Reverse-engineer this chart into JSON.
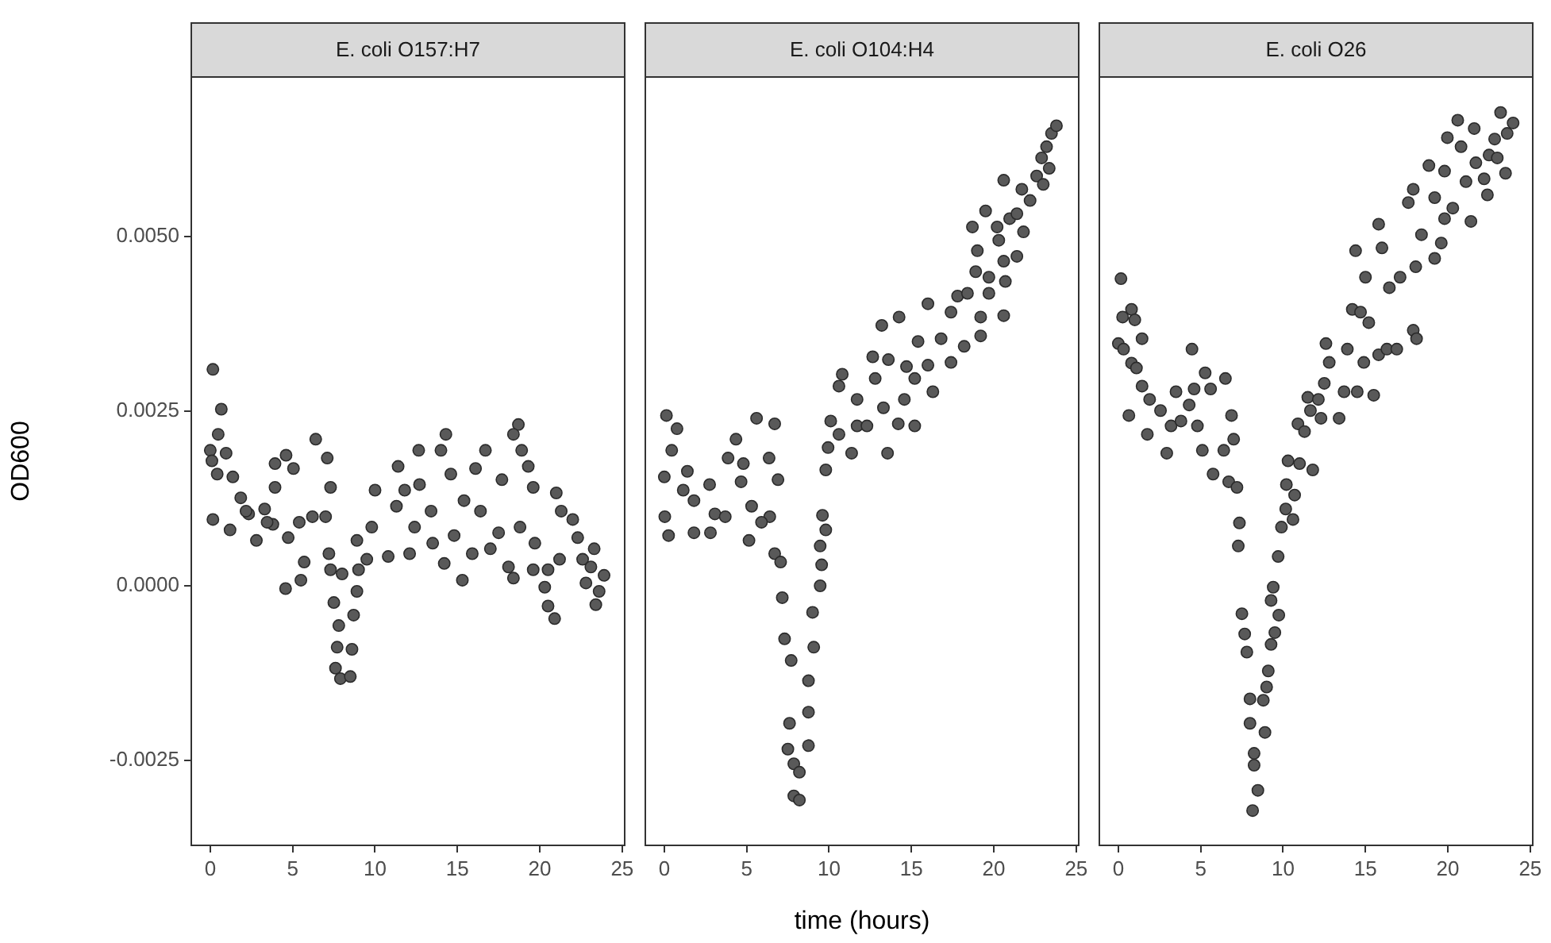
{
  "chart_data": [
    {
      "type": "scatter",
      "title": "E. coli O157:H7",
      "ylabel": "OD600",
      "color": "#595959",
      "marker": "circle",
      "xlim": [
        -1.2,
        25.2
      ],
      "xticks": [
        0,
        5,
        10,
        15,
        20,
        25
      ],
      "ylim": [
        -0.00373,
        0.0073
      ],
      "yticks": [
        {
          "value": -0.0025,
          "label": "-0.0025"
        },
        {
          "value": 0,
          "label": "0.0000"
        },
        {
          "value": 0.0025,
          "label": "0.0025"
        },
        {
          "value": 0.005,
          "label": "0.0050"
        }
      ],
      "x": [
        0.16,
        0.16,
        0,
        0.1,
        0.67,
        0.48,
        0.96,
        0.42,
        1.37,
        1.2,
        1.85,
        2.33,
        2.8,
        3.3,
        3.8,
        3.93,
        4.6,
        3.93,
        4.57,
        5.05,
        4.73,
        5.5,
        5.7,
        5.4,
        6.2,
        6.4,
        7.1,
        7.3,
        7.0,
        7.2,
        7.3,
        8.0,
        7.5,
        7.8,
        7.7,
        7.6,
        7.9,
        8.5,
        8.6,
        8.7,
        8.9,
        9.0,
        8.9,
        9.5,
        10.0,
        9.8,
        10.8,
        11.4,
        11.3,
        12.1,
        11.8,
        12.4,
        12.65,
        12.7,
        13.4,
        13.5,
        14.2,
        14.3,
        14.0,
        14.6,
        14.8,
        15.3,
        15.4,
        15.9,
        16.1,
        16.7,
        16.4,
        17.0,
        17.5,
        17.7,
        18.1,
        18.4,
        18.7,
        18.4,
        18.9,
        19.3,
        18.8,
        19.6,
        19.7,
        19.6,
        20.3,
        20.5,
        20.9,
        20.5,
        21.0,
        21.3,
        21.2,
        22.0,
        22.3,
        22.8,
        22.6,
        23.1,
        23.4,
        23.6,
        23.9,
        23.3,
        2.17,
        3.45
      ],
      "values": [
        0.0031,
        0.00095,
        0.00194,
        0.00179,
        0.00253,
        0.00217,
        0.0019,
        0.0016,
        0.00156,
        0.0008,
        0.00126,
        0.00103,
        0.00065,
        0.0011,
        0.00088,
        0.00175,
        0.00187,
        0.00141,
        -4e-05,
        0.00168,
        0.00069,
        8e-05,
        0.00034,
        0.00091,
        0.00099,
        0.0021,
        0.00183,
        0.00141,
        0.00099,
        0.00046,
        0.00023,
        0.00017,
        -0.00024,
        -0.00057,
        -0.00088,
        -0.00118,
        -0.00133,
        -0.0013,
        -0.00091,
        -0.00042,
        -8e-05,
        0.00023,
        0.00065,
        0.00038,
        0.00137,
        0.00084,
        0.00042,
        0.00171,
        0.00114,
        0.00046,
        0.00137,
        0.00084,
        0.00194,
        0.00145,
        0.00107,
        0.00061,
        0.00032,
        0.00217,
        0.00194,
        0.0016,
        0.00072,
        8e-05,
        0.00122,
        0.00046,
        0.00168,
        0.00194,
        0.00107,
        0.00053,
        0.00076,
        0.00152,
        0.00027,
        0.00011,
        0.00231,
        0.00217,
        0.00194,
        0.00171,
        0.00084,
        0.00141,
        0.00061,
        0.00023,
        -2e-05,
        -0.00029,
        -0.00047,
        0.00023,
        0.00133,
        0.00107,
        0.00038,
        0.00095,
        0.00069,
        4e-05,
        0.00038,
        0.00027,
        -0.00027,
        -8e-05,
        0.00015,
        0.00053,
        0.00107,
        0.00091
      ]
    },
    {
      "type": "scatter",
      "title": "E. coli O104:H4",
      "xlabel": "time (hours)",
      "tick_labels": "x",
      "color": "#595959",
      "marker": "circle",
      "xlim": [
        -1.2,
        25.2
      ],
      "xticks": [
        0,
        5,
        10,
        15,
        20,
        25
      ],
      "ylim": [
        -0.00373,
        0.0073
      ],
      "x": [
        0.13,
        0.77,
        0.45,
        0,
        0.03,
        0.26,
        1.4,
        1.15,
        1.8,
        1.8,
        2.75,
        2.8,
        3.07,
        3.7,
        3.87,
        4.35,
        4.8,
        4.66,
        5.14,
        5.3,
        5.6,
        6.36,
        6.7,
        6.9,
        6.4,
        5.9,
        6.7,
        7.06,
        7.16,
        7.3,
        7.7,
        7.6,
        7.5,
        7.86,
        7.86,
        8.2,
        8.2,
        8.75,
        8.75,
        8.75,
        9.07,
        9.0,
        9.46,
        9.55,
        9.46,
        9.8,
        9.6,
        9.8,
        9.94,
        10.1,
        10.6,
        11.37,
        10.6,
        10.8,
        11.7,
        12.3,
        11.7,
        12.65,
        12.8,
        13.3,
        13.55,
        13.2,
        13.6,
        14.25,
        14.2,
        14.57,
        14.7,
        15.2,
        15.2,
        15.4,
        16.0,
        16.0,
        16.3,
        16.8,
        17.4,
        17.4,
        17.8,
        18.2,
        18.4,
        19.2,
        19.2,
        18.9,
        18.7,
        19.0,
        19.5,
        19.7,
        19.7,
        20.2,
        20.3,
        20.6,
        20.6,
        20.6,
        20.7,
        20.96,
        21.4,
        21.4,
        21.7,
        21.8,
        22.2,
        22.6,
        22.9,
        23.0,
        23.36,
        23.5,
        23.8,
        23.2
      ],
      "values": [
        0.00244,
        0.00225,
        0.00194,
        0.00156,
        0.00099,
        0.00072,
        0.00164,
        0.00137,
        0.00122,
        0.00076,
        0.00145,
        0.00076,
        0.00103,
        0.00099,
        0.00183,
        0.0021,
        0.00175,
        0.00149,
        0.00065,
        0.00114,
        0.0024,
        0.00183,
        0.00232,
        0.00152,
        0.00099,
        0.00091,
        0.00046,
        0.00034,
        -0.00017,
        -0.00076,
        -0.00107,
        -0.00197,
        -0.00234,
        -0.00255,
        -0.00301,
        -0.00307,
        -0.00267,
        -0.00229,
        -0.00181,
        -0.00136,
        -0.00088,
        -0.00038,
        0,
        0.0003,
        0.00057,
        0.0008,
        0.00101,
        0.00166,
        0.00198,
        0.00236,
        0.00217,
        0.0019,
        0.00286,
        0.00303,
        0.00229,
        0.00229,
        0.00267,
        0.00328,
        0.00297,
        0.00255,
        0.0019,
        0.00373,
        0.00324,
        0.00385,
        0.00232,
        0.00267,
        0.00314,
        0.00229,
        0.00297,
        0.0035,
        0.00404,
        0.00316,
        0.00278,
        0.00354,
        0.0032,
        0.00392,
        0.00415,
        0.00343,
        0.00419,
        0.00358,
        0.00385,
        0.0045,
        0.00514,
        0.0048,
        0.00537,
        0.00442,
        0.00419,
        0.00514,
        0.00495,
        0.00581,
        0.00465,
        0.00387,
        0.00436,
        0.00526,
        0.00472,
        0.00533,
        0.00568,
        0.00507,
        0.00552,
        0.00587,
        0.00613,
        0.00575,
        0.00598,
        0.00648,
        0.00659,
        0.00629
      ]
    },
    {
      "type": "scatter",
      "title": "E. coli O26",
      "tick_labels": "x",
      "color": "#595959",
      "marker": "circle",
      "xlim": [
        -1.2,
        25.2
      ],
      "xticks": [
        0,
        5,
        10,
        15,
        20,
        25
      ],
      "ylim": [
        -0.00373,
        0.0073
      ],
      "x": [
        0.16,
        0,
        0.26,
        0.8,
        1.0,
        1.44,
        0.32,
        0.8,
        1.1,
        1.44,
        0.64,
        1.76,
        1.9,
        2.56,
        2.94,
        3.2,
        3.5,
        3.8,
        4.47,
        4.3,
        4.6,
        4.8,
        5.1,
        5.27,
        5.6,
        5.75,
        6.4,
        6.5,
        6.87,
        7.0,
        6.7,
        7.2,
        7.35,
        7.28,
        7.5,
        7.67,
        7.8,
        7.99,
        7.99,
        8.24,
        8.24,
        8.47,
        8.15,
        8.9,
        8.8,
        9.0,
        9.1,
        9.27,
        9.5,
        9.74,
        9.27,
        9.4,
        9.7,
        9.9,
        10.16,
        10.2,
        10.6,
        10.7,
        10.3,
        11.0,
        10.9,
        11.8,
        11.3,
        11.66,
        11.5,
        12.3,
        12.14,
        12.5,
        12.8,
        12.6,
        13.4,
        13.7,
        13.9,
        14.5,
        15.5,
        14.9,
        14.2,
        14.4,
        14.7,
        15.2,
        15.0,
        15.8,
        16.0,
        15.8,
        16.3,
        16.45,
        16.9,
        17.1,
        17.6,
        17.9,
        17.9,
        18.1,
        18.05,
        18.4,
        18.85,
        19.2,
        19.2,
        19.6,
        19.8,
        19.97,
        19.8,
        20.3,
        20.6,
        20.8,
        21.1,
        21.4,
        21.6,
        21.7,
        22.2,
        22.4,
        22.5,
        22.84,
        23.0,
        23.2,
        23.5,
        23.6,
        23.96
      ],
      "values": [
        0.0044,
        0.00347,
        0.00385,
        0.00396,
        0.00381,
        0.00354,
        0.00339,
        0.00319,
        0.00312,
        0.00286,
        0.00244,
        0.00217,
        0.00267,
        0.00251,
        0.0019,
        0.00229,
        0.00278,
        0.00236,
        0.00339,
        0.00259,
        0.00282,
        0.00229,
        0.00194,
        0.00305,
        0.00282,
        0.0016,
        0.00194,
        0.00297,
        0.00244,
        0.0021,
        0.00149,
        0.00141,
        0.0009,
        0.00057,
        -0.0004,
        -0.00069,
        -0.00095,
        -0.00162,
        -0.00197,
        -0.0024,
        -0.00257,
        -0.00293,
        -0.00322,
        -0.0021,
        -0.00164,
        -0.00145,
        -0.00122,
        -0.00084,
        -0.00067,
        -0.00042,
        -0.00021,
        -2e-05,
        0.00042,
        0.00084,
        0.0011,
        0.00145,
        0.00095,
        0.0013,
        0.00179,
        0.00175,
        0.00232,
        0.00166,
        0.00221,
        0.00251,
        0.0027,
        0.0024,
        0.00267,
        0.0029,
        0.0032,
        0.00347,
        0.0024,
        0.00278,
        0.00339,
        0.00278,
        0.00273,
        0.0032,
        0.00396,
        0.0048,
        0.00392,
        0.00377,
        0.00442,
        0.00518,
        0.00484,
        0.00331,
        0.00339,
        0.00427,
        0.00339,
        0.00442,
        0.00549,
        0.00568,
        0.00366,
        0.00354,
        0.00457,
        0.00503,
        0.00602,
        0.00556,
        0.00469,
        0.00491,
        0.00594,
        0.00642,
        0.00526,
        0.00541,
        0.00667,
        0.00629,
        0.00579,
        0.00522,
        0.00655,
        0.00606,
        0.00583,
        0.0056,
        0.00617,
        0.0064,
        0.00613,
        0.00678,
        0.00591,
        0.00648,
        0.00663
      ]
    }
  ]
}
